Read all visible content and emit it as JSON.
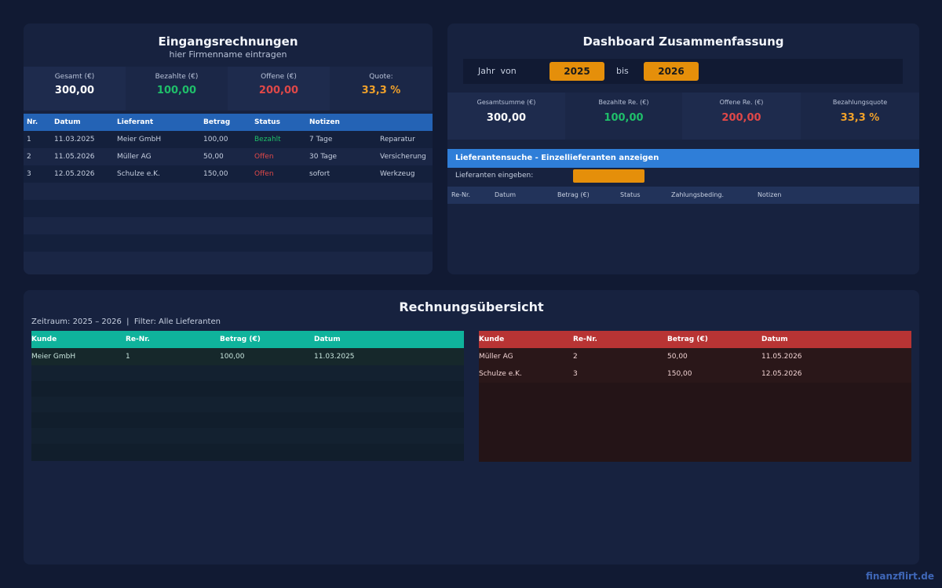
{
  "eingang": {
    "title": "Eingangsrechnungen",
    "subtitle": "hier Firmenname eintragen",
    "stats": [
      {
        "label": "Gesamt (€)",
        "value": "300,00"
      },
      {
        "label": "Bezahlte (€)",
        "value": "100,00"
      },
      {
        "label": "Offene (€)",
        "value": "200,00"
      },
      {
        "label": "Quote:",
        "value": "33,3 %"
      }
    ],
    "columns": [
      "Nr.",
      "Datum",
      "Lieferant",
      "Betrag",
      "Status",
      "Notizen"
    ],
    "rows": [
      {
        "nr": "1",
        "datum": "11.03.2025",
        "lieferant": "Meier GmbH",
        "betrag": "100,00",
        "status": "Bezahlt",
        "notizen": "7 Tage",
        "extra": "Reparatur"
      },
      {
        "nr": "2",
        "datum": "11.05.2026",
        "lieferant": "Müller AG",
        "betrag": "50,00",
        "status": "Offen",
        "notizen": "30 Tage",
        "extra": "Versicherung"
      },
      {
        "nr": "3",
        "datum": "12.05.2026",
        "lieferant": "Schulze e.K.",
        "betrag": "150,00",
        "status": "Offen",
        "notizen": "sofort",
        "extra": "Werkzeug"
      }
    ]
  },
  "dashboard": {
    "title": "Dashboard Zusammenfassung",
    "year_from_label": "Jahr  von",
    "year_from": "2025",
    "year_to_label": "bis",
    "year_to": "2026",
    "stats": [
      {
        "label": "Gesamtsumme (€)",
        "value": "300,00"
      },
      {
        "label": "Bezahlte Re. (€)",
        "value": "100,00"
      },
      {
        "label": "Offene Re. (€)",
        "value": "200,00"
      },
      {
        "label": "Bezahlungsquote",
        "value": "33,3 %"
      }
    ],
    "search_title": "Lieferantensuche - Einzellieferanten anzeigen",
    "search_label": "Lieferanten eingeben:",
    "search_value": "",
    "columns": [
      "Re-Nr.",
      "Datum",
      "Betrag (€)",
      "Status",
      "Zahlungsbeding.",
      "Notizen"
    ]
  },
  "uebersicht": {
    "title": "Rechnungsübersicht",
    "filter_text": "Zeitraum: 2025 – 2026  |  Filter: Alle Lieferanten",
    "columns": [
      "Kunde",
      "Re-Nr.",
      "Betrag (€)",
      "Datum"
    ],
    "paid_rows": [
      {
        "kunde": "Meier GmbH",
        "nr": "1",
        "betrag": "100,00",
        "datum": "11.03.2025"
      }
    ],
    "open_rows": [
      {
        "kunde": "Müller AG",
        "nr": "2",
        "betrag": "50,00",
        "datum": "11.05.2026"
      },
      {
        "kunde": "Schulze e.K.",
        "nr": "3",
        "betrag": "150,00",
        "datum": "12.05.2026"
      }
    ]
  },
  "brand": "finanzflirt.de",
  "colors": {
    "background": "#111a33",
    "panel": "#17223f",
    "blue_header": "#2463b5",
    "teal_header": "#0fb39c",
    "red_header": "#b83434",
    "green": "#1fbf6a",
    "red": "#e04848",
    "orange": "#f0a12a"
  }
}
